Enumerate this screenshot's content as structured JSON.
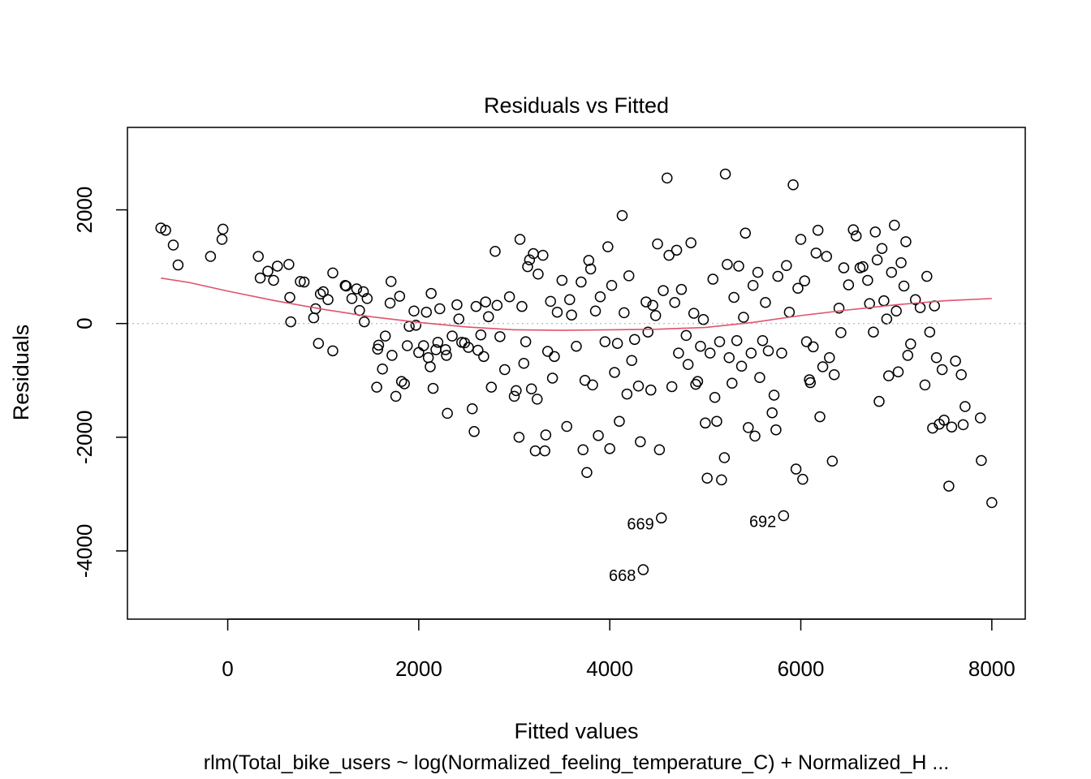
{
  "chart_data": {
    "type": "scatter",
    "title": "Residuals vs Fitted",
    "xlabel": "Fitted values",
    "ylabel": "Residuals",
    "subtitle": "rlm(Total_bike_users ~ log(Normalized_feeling_temperature_C) + Normalized_H ...",
    "xlim": [
      -1050,
      8350
    ],
    "ylim": [
      -5200,
      3450
    ],
    "xticks": [
      0,
      2000,
      4000,
      6000,
      8000
    ],
    "yticks": [
      -4000,
      -2000,
      0,
      2000
    ],
    "xtick_labels": [
      "0",
      "2000",
      "4000",
      "6000",
      "8000"
    ],
    "ytick_labels": [
      "-4000",
      "-2000",
      "0",
      "2000"
    ],
    "grid": false,
    "legend": "none",
    "reference_line_y": 0,
    "colors": {
      "points": "#000000",
      "smooth": "#DF536B",
      "reference": "#BEBEBE",
      "frame": "#000000"
    },
    "points": [
      [
        -700,
        1680
      ],
      [
        -650,
        1640
      ],
      [
        -570,
        1380
      ],
      [
        -520,
        1030
      ],
      [
        -180,
        1180
      ],
      [
        -60,
        1480
      ],
      [
        -50,
        1660
      ],
      [
        320,
        1180
      ],
      [
        340,
        800
      ],
      [
        420,
        920
      ],
      [
        480,
        760
      ],
      [
        520,
        1010
      ],
      [
        640,
        1040
      ],
      [
        650,
        460
      ],
      [
        660,
        30
      ],
      [
        760,
        740
      ],
      [
        800,
        730
      ],
      [
        900,
        100
      ],
      [
        920,
        260
      ],
      [
        950,
        -350
      ],
      [
        970,
        520
      ],
      [
        1000,
        560
      ],
      [
        1050,
        420
      ],
      [
        1100,
        -480
      ],
      [
        1100,
        890
      ],
      [
        1230,
        670
      ],
      [
        1240,
        660
      ],
      [
        1300,
        440
      ],
      [
        1350,
        610
      ],
      [
        1380,
        230
      ],
      [
        1420,
        560
      ],
      [
        1430,
        30
      ],
      [
        1460,
        440
      ],
      [
        1560,
        -1120
      ],
      [
        1570,
        -450
      ],
      [
        1580,
        -380
      ],
      [
        1620,
        -800
      ],
      [
        1650,
        -220
      ],
      [
        1700,
        360
      ],
      [
        1710,
        740
      ],
      [
        1720,
        -560
      ],
      [
        1760,
        -1280
      ],
      [
        1800,
        480
      ],
      [
        1820,
        -1020
      ],
      [
        1850,
        -1060
      ],
      [
        1880,
        -390
      ],
      [
        1900,
        -50
      ],
      [
        1950,
        220
      ],
      [
        1970,
        -30
      ],
      [
        2000,
        -510
      ],
      [
        2050,
        -390
      ],
      [
        2080,
        200
      ],
      [
        2100,
        -600
      ],
      [
        2120,
        -760
      ],
      [
        2130,
        530
      ],
      [
        2150,
        -1140
      ],
      [
        2180,
        -460
      ],
      [
        2200,
        -330
      ],
      [
        2220,
        260
      ],
      [
        2280,
        -460
      ],
      [
        2290,
        -560
      ],
      [
        2300,
        -1580
      ],
      [
        2350,
        -220
      ],
      [
        2400,
        330
      ],
      [
        2420,
        80
      ],
      [
        2450,
        -330
      ],
      [
        2480,
        -340
      ],
      [
        2520,
        -420
      ],
      [
        2560,
        -1500
      ],
      [
        2580,
        -1900
      ],
      [
        2600,
        300
      ],
      [
        2620,
        -470
      ],
      [
        2650,
        -200
      ],
      [
        2680,
        -580
      ],
      [
        2700,
        380
      ],
      [
        2730,
        120
      ],
      [
        2760,
        -1120
      ],
      [
        2800,
        1270
      ],
      [
        2820,
        320
      ],
      [
        2850,
        -230
      ],
      [
        2900,
        -810
      ],
      [
        2950,
        470
      ],
      [
        3000,
        -1280
      ],
      [
        3020,
        -1180
      ],
      [
        3050,
        -2000
      ],
      [
        3060,
        1480
      ],
      [
        3080,
        300
      ],
      [
        3100,
        -700
      ],
      [
        3120,
        -320
      ],
      [
        3140,
        1000
      ],
      [
        3160,
        1120
      ],
      [
        3180,
        -1150
      ],
      [
        3200,
        1230
      ],
      [
        3220,
        -2240
      ],
      [
        3240,
        -1330
      ],
      [
        3250,
        870
      ],
      [
        3300,
        1200
      ],
      [
        3320,
        -2240
      ],
      [
        3330,
        -1960
      ],
      [
        3350,
        -490
      ],
      [
        3380,
        390
      ],
      [
        3400,
        -960
      ],
      [
        3420,
        -580
      ],
      [
        3450,
        200
      ],
      [
        3500,
        760
      ],
      [
        3550,
        -1810
      ],
      [
        3580,
        420
      ],
      [
        3600,
        150
      ],
      [
        3650,
        -400
      ],
      [
        3700,
        730
      ],
      [
        3720,
        -2220
      ],
      [
        3740,
        -1000
      ],
      [
        3760,
        -2620
      ],
      [
        3780,
        1110
      ],
      [
        3800,
        960
      ],
      [
        3820,
        -1080
      ],
      [
        3850,
        220
      ],
      [
        3880,
        -1970
      ],
      [
        3900,
        470
      ],
      [
        3950,
        -320
      ],
      [
        3980,
        1350
      ],
      [
        4000,
        -2200
      ],
      [
        4020,
        670
      ],
      [
        4050,
        -860
      ],
      [
        4080,
        -350
      ],
      [
        4100,
        -1720
      ],
      [
        4130,
        1900
      ],
      [
        4150,
        190
      ],
      [
        4180,
        -1240
      ],
      [
        4200,
        840
      ],
      [
        4230,
        -650
      ],
      [
        4260,
        -280
      ],
      [
        4300,
        -1100
      ],
      [
        4320,
        -2080
      ],
      [
        4350,
        -4330
      ],
      [
        4380,
        380
      ],
      [
        4400,
        -150
      ],
      [
        4430,
        -1170
      ],
      [
        4450,
        320
      ],
      [
        4480,
        140
      ],
      [
        4500,
        1400
      ],
      [
        4520,
        -2220
      ],
      [
        4540,
        -3420
      ],
      [
        4560,
        580
      ],
      [
        4600,
        2560
      ],
      [
        4620,
        1200
      ],
      [
        4650,
        -1110
      ],
      [
        4680,
        370
      ],
      [
        4700,
        1290
      ],
      [
        4720,
        -520
      ],
      [
        4750,
        600
      ],
      [
        4800,
        -210
      ],
      [
        4820,
        -720
      ],
      [
        4850,
        1420
      ],
      [
        4880,
        180
      ],
      [
        4900,
        -1070
      ],
      [
        4920,
        -1020
      ],
      [
        4950,
        -400
      ],
      [
        4980,
        70
      ],
      [
        5000,
        -1750
      ],
      [
        5020,
        -2720
      ],
      [
        5050,
        -520
      ],
      [
        5080,
        780
      ],
      [
        5100,
        -1300
      ],
      [
        5120,
        -1720
      ],
      [
        5150,
        -320
      ],
      [
        5170,
        -2750
      ],
      [
        5200,
        -2360
      ],
      [
        5210,
        2630
      ],
      [
        5230,
        1040
      ],
      [
        5250,
        -600
      ],
      [
        5280,
        -1050
      ],
      [
        5300,
        460
      ],
      [
        5330,
        -300
      ],
      [
        5350,
        1010
      ],
      [
        5380,
        -750
      ],
      [
        5400,
        110
      ],
      [
        5420,
        1590
      ],
      [
        5450,
        -1830
      ],
      [
        5480,
        -520
      ],
      [
        5500,
        670
      ],
      [
        5520,
        -1980
      ],
      [
        5550,
        900
      ],
      [
        5570,
        -950
      ],
      [
        5600,
        -300
      ],
      [
        5630,
        370
      ],
      [
        5660,
        -480
      ],
      [
        5700,
        -1570
      ],
      [
        5720,
        -1260
      ],
      [
        5740,
        -1870
      ],
      [
        5760,
        830
      ],
      [
        5800,
        -520
      ],
      [
        5820,
        -3380
      ],
      [
        5850,
        1020
      ],
      [
        5880,
        200
      ],
      [
        5920,
        2440
      ],
      [
        5950,
        -2560
      ],
      [
        5970,
        620
      ],
      [
        6000,
        1480
      ],
      [
        6020,
        -2740
      ],
      [
        6040,
        750
      ],
      [
        6060,
        -320
      ],
      [
        6090,
        -990
      ],
      [
        6100,
        -1040
      ],
      [
        6130,
        -410
      ],
      [
        6160,
        1240
      ],
      [
        6180,
        1640
      ],
      [
        6200,
        -1640
      ],
      [
        6230,
        -760
      ],
      [
        6270,
        1180
      ],
      [
        6300,
        -600
      ],
      [
        6330,
        -2420
      ],
      [
        6350,
        -900
      ],
      [
        6400,
        270
      ],
      [
        6420,
        -160
      ],
      [
        6450,
        980
      ],
      [
        6500,
        680
      ],
      [
        6550,
        1650
      ],
      [
        6580,
        1540
      ],
      [
        6620,
        980
      ],
      [
        6650,
        1000
      ],
      [
        6700,
        760
      ],
      [
        6720,
        350
      ],
      [
        6760,
        -150
      ],
      [
        6780,
        1610
      ],
      [
        6800,
        1120
      ],
      [
        6820,
        -1370
      ],
      [
        6850,
        1320
      ],
      [
        6870,
        400
      ],
      [
        6900,
        80
      ],
      [
        6920,
        -920
      ],
      [
        6950,
        900
      ],
      [
        6980,
        1730
      ],
      [
        7000,
        220
      ],
      [
        7020,
        -850
      ],
      [
        7050,
        1070
      ],
      [
        7080,
        660
      ],
      [
        7100,
        1440
      ],
      [
        7120,
        -560
      ],
      [
        7150,
        -360
      ],
      [
        7200,
        420
      ],
      [
        7250,
        280
      ],
      [
        7300,
        -1080
      ],
      [
        7320,
        830
      ],
      [
        7350,
        -150
      ],
      [
        7380,
        -1840
      ],
      [
        7400,
        310
      ],
      [
        7420,
        -600
      ],
      [
        7450,
        -1770
      ],
      [
        7480,
        -810
      ],
      [
        7500,
        -1700
      ],
      [
        7550,
        -2860
      ],
      [
        7580,
        -1820
      ],
      [
        7620,
        -660
      ],
      [
        7680,
        -900
      ],
      [
        7700,
        -1780
      ],
      [
        7720,
        -1460
      ],
      [
        7880,
        -1660
      ],
      [
        7890,
        -2410
      ],
      [
        8000,
        -3150
      ]
    ],
    "smooth": [
      [
        -700,
        800
      ],
      [
        -400,
        720
      ],
      [
        0,
        570
      ],
      [
        500,
        400
      ],
      [
        1000,
        250
      ],
      [
        1500,
        120
      ],
      [
        2000,
        20
      ],
      [
        2500,
        -60
      ],
      [
        3000,
        -110
      ],
      [
        3500,
        -120
      ],
      [
        4000,
        -110
      ],
      [
        4500,
        -100
      ],
      [
        5000,
        -70
      ],
      [
        5500,
        20
      ],
      [
        6000,
        140
      ],
      [
        6500,
        240
      ],
      [
        7000,
        330
      ],
      [
        7500,
        400
      ],
      [
        8000,
        440
      ]
    ],
    "annotations": [
      {
        "label": "669",
        "x": 4540,
        "y": -3420
      },
      {
        "label": "692",
        "x": 5820,
        "y": -3380
      },
      {
        "label": "668",
        "x": 4350,
        "y": -4330
      }
    ]
  }
}
